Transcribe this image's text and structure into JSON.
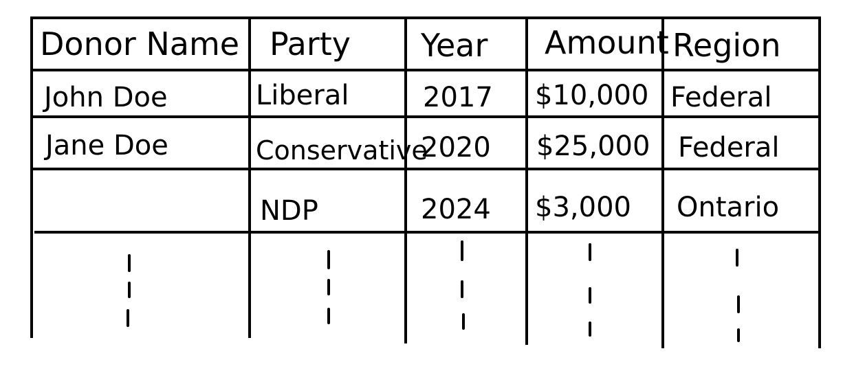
{
  "table": {
    "headers": [
      "Donor Name",
      "Party",
      "Year",
      "Amount",
      "Region"
    ],
    "rows": [
      [
        "John Doe",
        "Liberal",
        "2017",
        "$10,000",
        "Federal"
      ],
      [
        "Jane Doe",
        "Conservative",
        "2020",
        "$25,000",
        "Federal"
      ],
      [
        "",
        "NDP",
        "2024",
        "$3,000",
        "Ontario"
      ]
    ]
  }
}
